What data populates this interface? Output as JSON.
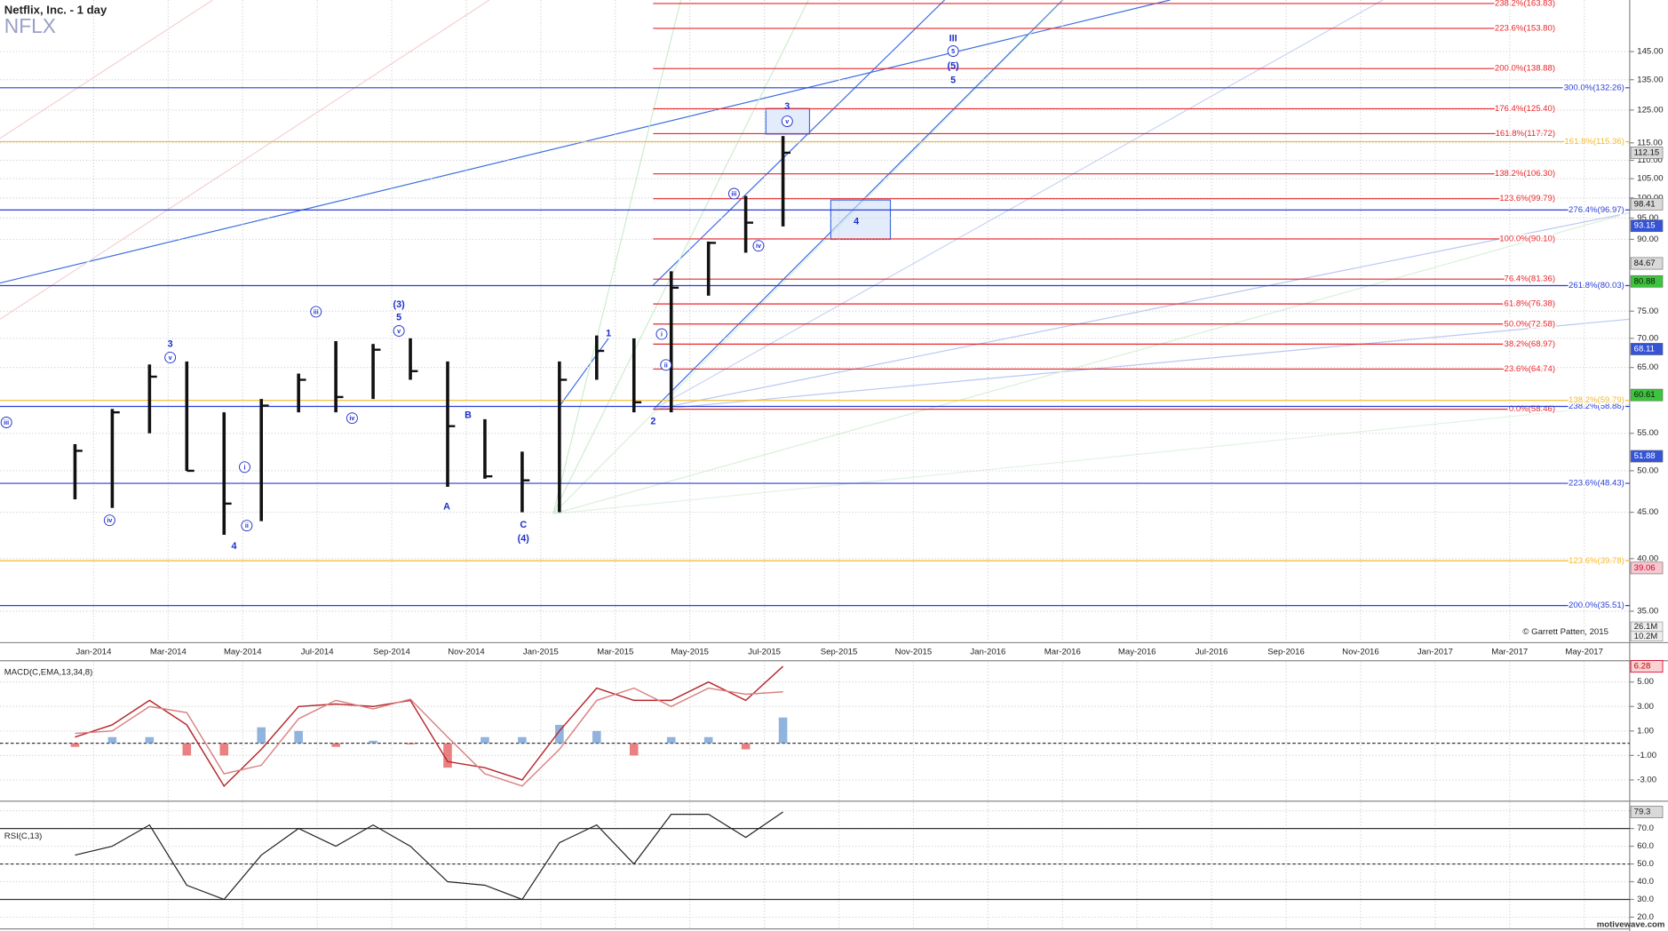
{
  "header": {
    "title": "Netflix, Inc. - 1 day",
    "symbol": "NFLX"
  },
  "chart_data": [
    {
      "type": "price-bars",
      "log_scale": true,
      "grid": true,
      "color": "#111111",
      "categories": [
        null,
        "Jan-2014",
        null,
        "Mar-2014",
        null,
        "May-2014",
        null,
        "Jul-2014",
        null,
        "Sep-2014",
        null,
        "Nov-2014",
        null,
        "Jan-2015",
        null,
        "Mar-2015",
        null,
        "May-2015",
        null,
        "Jul-2015",
        null,
        "Sep-2015",
        null,
        "Nov-2015",
        null,
        "Jan-2016",
        null,
        "Mar-2016",
        null,
        "May-2016",
        null,
        "Jul-2016",
        null,
        "Sep-2016",
        null,
        "Nov-2016",
        null,
        "Jan-2017",
        null,
        "Mar-2017",
        null,
        "May-2017"
      ],
      "values": [
        52.6,
        58,
        63.5,
        50,
        46,
        59,
        63,
        60.3,
        68,
        64.4,
        56,
        49.3,
        48.8,
        63,
        67.8,
        59.5,
        79.6,
        89.2,
        93.9,
        112.15,
        null,
        null,
        null,
        null,
        null,
        null,
        null,
        null,
        null,
        null,
        null,
        null,
        null,
        null,
        null,
        null,
        null,
        null,
        null,
        null,
        null,
        null
      ],
      "high": [
        53.5,
        58.5,
        65.5,
        66,
        58,
        60,
        64,
        69.5,
        69,
        70,
        66,
        57,
        52.5,
        66,
        70.5,
        70,
        83,
        89.5,
        100.5,
        117,
        null,
        null,
        null,
        null,
        null,
        null,
        null,
        null,
        null,
        null,
        null,
        null,
        null,
        null,
        null,
        null,
        null,
        null,
        null,
        null,
        null,
        null
      ],
      "low": [
        46.5,
        45.5,
        55,
        50,
        42.5,
        44,
        58,
        58,
        60,
        63,
        48,
        49,
        45,
        45,
        63,
        58,
        58,
        78,
        87,
        93,
        null,
        null,
        null,
        null,
        null,
        null,
        null,
        null,
        null,
        null,
        null,
        null,
        null,
        null,
        null,
        null,
        null,
        null,
        null,
        null,
        null,
        null
      ],
      "ylim": [
        32.4,
        165.3
      ],
      "yticks": [
        {
          "value": 145,
          "label": "145.00"
        },
        {
          "value": 135,
          "label": "135.00"
        },
        {
          "value": 125,
          "label": "125.00"
        },
        {
          "value": 115,
          "label": "115.00"
        },
        {
          "value": 110,
          "label": "110.00"
        },
        {
          "value": 105,
          "label": "105.00"
        },
        {
          "value": 100,
          "label": "100.00"
        },
        {
          "value": 95,
          "label": "95.00"
        },
        {
          "value": 90,
          "label": "90.00"
        },
        {
          "value": 75,
          "label": "75.00"
        },
        {
          "value": 70,
          "label": "70.00"
        },
        {
          "value": 65,
          "label": "65.00"
        },
        {
          "value": 55,
          "label": "55.00"
        },
        {
          "value": 50,
          "label": "50.00"
        },
        {
          "value": 45,
          "label": "45.00"
        },
        {
          "value": 40,
          "label": "40.00"
        },
        {
          "value": 35,
          "label": "35.00"
        }
      ],
      "level_groups": [
        {
          "color": "#e8262b",
          "levels": [
            {
              "value": 163.83,
              "label": "238.2%(163.83)"
            },
            {
              "value": 153.8,
              "label": "223.6%(153.80)"
            },
            {
              "value": 138.88,
              "label": "200.0%(138.88)"
            },
            {
              "value": 125.4,
              "label": "176.4%(125.40)"
            },
            {
              "value": 117.72,
              "label": "161.8%(117.72)"
            },
            {
              "value": 106.3,
              "label": "138.2%(106.30)"
            },
            {
              "value": 99.79,
              "label": "123.6%(99.79)"
            },
            {
              "value": 90.1,
              "label": "100.0%(90.10)"
            },
            {
              "value": 81.36,
              "label": "76.4%(81.36)"
            },
            {
              "value": 76.38,
              "label": "61.8%(76.38)"
            },
            {
              "value": 72.58,
              "label": "50.0%(72.58)"
            },
            {
              "value": 68.97,
              "label": "38.2%(68.97)"
            },
            {
              "value": 64.74,
              "label": "23.6%(64.74)"
            },
            {
              "value": 58.46,
              "label": "0.0%(58.46)"
            }
          ]
        },
        {
          "color": "#2a3fd6",
          "levels": [
            {
              "value": 132.26,
              "label": "300.0%(132.26)"
            },
            {
              "value": 96.97,
              "label": "276.4%(96.97)"
            },
            {
              "value": 80.03,
              "label": "261.8%(80.03)"
            },
            {
              "value": 58.88,
              "label": "238.2%(58.88)"
            },
            {
              "value": 48.43,
              "label": "223.6%(48.43)"
            },
            {
              "value": 35.51,
              "label": "200.0%(35.51)"
            }
          ]
        },
        {
          "color": "#f5b82e",
          "levels": [
            {
              "value": 115.36,
              "label": "161.8%(115.36)"
            },
            {
              "value": 59.79,
              "label": "138.2%(59.79)"
            },
            {
              "value": 39.78,
              "label": "123.6%(39.78)"
            }
          ]
        }
      ],
      "price_tags": [
        {
          "value": 112.15,
          "color": "#d9d9d9",
          "text_color": "#111111"
        },
        {
          "value": 98.41,
          "color": "#d9d9d9",
          "text_color": "#111111"
        },
        {
          "value": 93.15,
          "color": "#3553d6",
          "text_color": "#ffffff"
        },
        {
          "value": 84.67,
          "color": "#d9d9d9",
          "text_color": "#111111"
        },
        {
          "value": 80.88,
          "color": "#3cc43c",
          "text_color": "#111111"
        },
        {
          "value": 68.11,
          "color": "#3553d6",
          "text_color": "#ffffff"
        },
        {
          "value": 60.61,
          "color": "#3cc43c",
          "text_color": "#111111"
        },
        {
          "value": 51.88,
          "color": "#3553d6",
          "text_color": "#ffffff"
        },
        {
          "value": 39.06,
          "color": "#f6c7cf",
          "text_color": "#d3002a"
        }
      ],
      "volume_tags": [
        "26.1M",
        "10.2M"
      ],
      "annotations": [
        "iii",
        "iv",
        "3",
        "v",
        "i",
        "ii",
        "4",
        "iii",
        "iv",
        "(3)",
        "5",
        "v",
        "B",
        "A",
        "C",
        "(4)",
        "1",
        "i",
        "ii",
        "2",
        "iii",
        "iv",
        "3",
        "v",
        "4",
        "III",
        "5",
        "(5)",
        "5"
      ],
      "copyright": "© Garrett Patten, 2015"
    },
    {
      "type": "macd",
      "title": "MACD(C,EMA,13,34,8)",
      "grid": true,
      "zero_line": true,
      "series": [
        {
          "color": "#b5262b",
          "values": [
            0.5,
            1.5,
            3.5,
            1.5,
            -3.5,
            -0.5,
            3.0,
            3.2,
            3.0,
            3.5,
            -1.5,
            -2.0,
            -3.0,
            1.0,
            4.5,
            3.5,
            3.5,
            5.0,
            3.5,
            6.28,
            null,
            null,
            null,
            null,
            null,
            null,
            null,
            null,
            null,
            null,
            null,
            null,
            null,
            null,
            null,
            null,
            null,
            null,
            null,
            null,
            null,
            null
          ]
        },
        {
          "color": "#d98080",
          "values": [
            0.8,
            1.0,
            3.0,
            2.5,
            -2.5,
            -1.8,
            2.0,
            3.5,
            2.8,
            3.6,
            0.5,
            -2.5,
            -3.5,
            -0.5,
            3.5,
            4.5,
            3.0,
            4.5,
            4.0,
            4.2,
            null,
            null,
            null,
            null,
            null,
            null,
            null,
            null,
            null,
            null,
            null,
            null,
            null,
            null,
            null,
            null,
            null,
            null,
            null,
            null,
            null,
            null
          ]
        }
      ],
      "histogram": [
        -0.3,
        0.5,
        0.5,
        -1,
        -1,
        1.3,
        1,
        -0.3,
        0.2,
        -0.1,
        -2,
        0.5,
        0.5,
        1.5,
        1,
        -1,
        0.5,
        0.5,
        -0.5,
        2.1,
        null,
        null,
        null,
        null,
        null,
        null,
        null,
        null,
        null,
        null,
        null,
        null,
        null,
        null,
        null,
        null,
        null,
        null,
        null,
        null,
        null,
        null
      ],
      "histogram_colors": [
        "#6b9bd1",
        "#e15759"
      ],
      "ylim": [
        -4.65,
        6.65
      ],
      "yticks": [
        {
          "value": 5,
          "label": "5.00"
        },
        {
          "value": 3,
          "label": "3.00"
        },
        {
          "value": 1,
          "label": "1.00"
        },
        {
          "value": -1,
          "label": "-1.00"
        },
        {
          "value": -3,
          "label": "-3.00"
        }
      ],
      "tag": 6.28
    },
    {
      "type": "rsi",
      "title": "RSI(C,13)",
      "grid": true,
      "color": "#222222",
      "values": [
        55,
        60,
        72,
        38,
        30,
        55,
        70,
        60,
        72,
        60,
        40,
        38,
        30,
        62,
        72,
        50,
        78,
        78,
        65,
        79.3,
        null,
        null,
        null,
        null,
        null,
        null,
        null,
        null,
        null,
        null,
        null,
        null,
        null,
        null,
        null,
        null,
        null,
        null,
        null,
        null,
        null,
        null
      ],
      "ylim": [
        14,
        84.8
      ],
      "yticks": [
        {
          "value": 80,
          "label": "80.0"
        },
        {
          "value": 70,
          "label": "70.0"
        },
        {
          "value": 60,
          "label": "60.0"
        },
        {
          "value": 50,
          "label": "50.0"
        },
        {
          "value": 40,
          "label": "40.0"
        },
        {
          "value": 30,
          "label": "30.0"
        },
        {
          "value": 20,
          "label": "20.0"
        }
      ],
      "levels": [
        {
          "value": 70,
          "dashed": false
        },
        {
          "value": 50,
          "dashed": true
        },
        {
          "value": 30,
          "dashed": false
        }
      ],
      "tag": 79.3
    }
  ],
  "footer": {
    "watermark": "motivewave.com"
  }
}
